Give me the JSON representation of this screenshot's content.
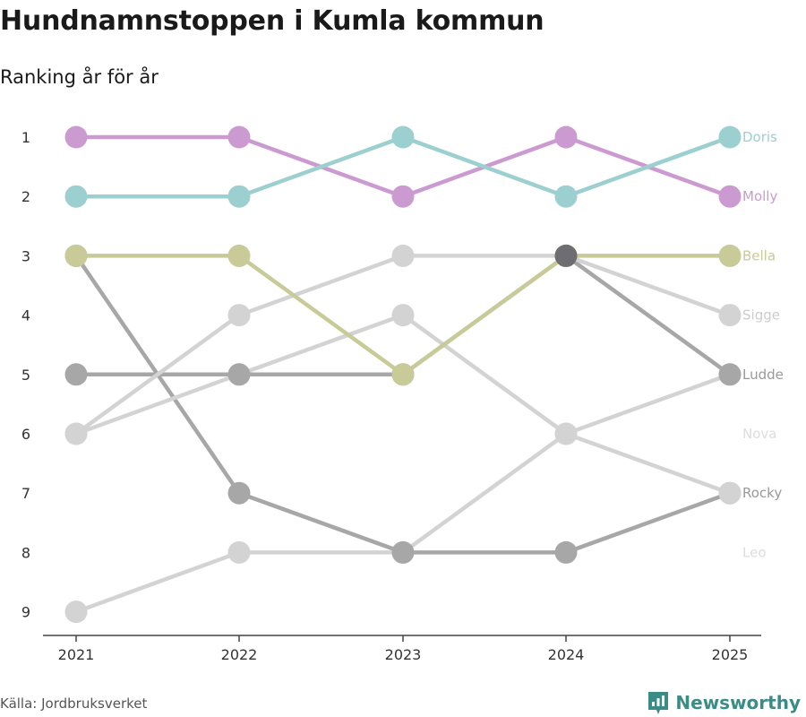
{
  "title": "Hundnamnstoppen i Kumla kommun",
  "subtitle": "Ranking år för år",
  "source": "Källa: Jordbruksverket",
  "brand": "Newsworthy",
  "colors": {
    "axis": "#444444",
    "text": "#333333",
    "brand": "#3b8c87"
  },
  "chart_data": {
    "type": "line",
    "x": [
      "2021",
      "2022",
      "2023",
      "2024",
      "2025"
    ],
    "y_ticks": [
      "1",
      "2",
      "3",
      "4",
      "5",
      "6",
      "7",
      "8",
      "9"
    ],
    "ylim": [
      1,
      9
    ],
    "y_inverted": true,
    "series": [
      {
        "name": "Doris",
        "ranks": [
          2,
          2,
          1,
          2,
          1
        ],
        "color": "#9ccfcf",
        "label_color": "#9ccfcf"
      },
      {
        "name": "Molly",
        "ranks": [
          1,
          1,
          2,
          1,
          2
        ],
        "color": "#cb9ad1",
        "label_color": "#cb9ad1"
      },
      {
        "name": "Bella",
        "ranks": [
          3,
          3,
          5,
          3,
          3
        ],
        "color": "#c8ca97",
        "label_color": "#c8ca97"
      },
      {
        "name": "Sigge",
        "ranks": [
          6,
          4,
          3,
          3,
          4
        ],
        "color": "#d3d3d3",
        "label_color": "#cccccc"
      },
      {
        "name": "Ludde",
        "ranks": [
          5,
          5,
          5,
          3,
          5
        ],
        "color": "#a7a7a7",
        "label_color": "#999999"
      },
      {
        "name": "Nova",
        "ranks": [
          6,
          5,
          4,
          6,
          7
        ],
        "color": "#d3d3d3",
        "label_color": "#dddddd"
      },
      {
        "name": "Rocky",
        "ranks": [
          3,
          7,
          8,
          8,
          7
        ],
        "color": "#a7a7a7",
        "label_color": "#999999"
      },
      {
        "name": "Leo",
        "ranks": [
          9,
          8,
          8,
          6,
          5
        ],
        "color": "#d3d3d3",
        "label_color": "#dddddd"
      }
    ],
    "end_labels": [
      {
        "name": "Doris",
        "rank": 1,
        "color": "#9ccfcf"
      },
      {
        "name": "Molly",
        "rank": 2,
        "color": "#cb9ad1"
      },
      {
        "name": "Bella",
        "rank": 3,
        "color": "#c8ca97"
      },
      {
        "name": "Sigge",
        "rank": 4,
        "color": "#cccccc"
      },
      {
        "name": "Ludde",
        "rank": 5,
        "color": "#999999"
      },
      {
        "name": "Nova",
        "rank": 6,
        "color": "#dddddd"
      },
      {
        "name": "Rocky",
        "rank": 7,
        "color": "#999999"
      },
      {
        "name": "Leo",
        "rank": 8,
        "color": "#dddddd"
      }
    ],
    "overlap_markers": [
      {
        "x": "2024",
        "rank": 3,
        "color": "#6e6e72"
      }
    ]
  }
}
